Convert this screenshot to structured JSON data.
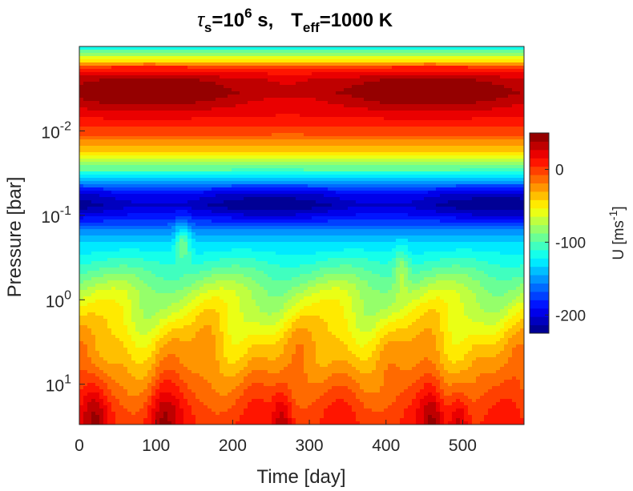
{
  "title": {
    "tau": "τ",
    "tau_sub": "s",
    "tau_eq": "=10",
    "tau_exp": "6",
    "tau_unit": " s,",
    "teff": "T",
    "teff_sub": "eff",
    "teff_val": "=1000 K"
  },
  "chart_data": {
    "type": "heatmap",
    "plot_style": "filled contour",
    "xlabel": "Time [day]",
    "ylabel": "Pressure [bar]",
    "xlim": [
      0,
      580
    ],
    "x_ticks": [
      0,
      100,
      200,
      300,
      400,
      500
    ],
    "x_tick_labels": [
      "0",
      "100",
      "200",
      "300",
      "400",
      "500"
    ],
    "y_scale": "log",
    "y_direction": "reversed",
    "ylim_bar": [
      0.001,
      30
    ],
    "y_ticks": [
      0.01,
      0.1,
      1,
      10
    ],
    "y_tick_labels": [
      {
        "base": "10",
        "exp": "-2"
      },
      {
        "base": "10",
        "exp": "-1"
      },
      {
        "base": "10",
        "exp": "0"
      },
      {
        "base": "10",
        "exp": "1"
      }
    ],
    "colorbar": {
      "label_base": "U [ms",
      "label_exp": "-1",
      "label_end": "]",
      "range": [
        -225,
        50
      ],
      "ticks": [
        0,
        -100,
        -200
      ],
      "tick_labels": [
        "0",
        "-100",
        "-200"
      ],
      "colormap": "jet",
      "levels": 24
    },
    "features": [
      {
        "name": "upper westerly jet",
        "pressure_bar": 0.003,
        "u_ms": 40
      },
      {
        "name": "easterly jet",
        "pressure_bar": 0.08,
        "u_ms": -210
      },
      {
        "name": "deep bursts",
        "pressure_bar": 25,
        "times_day": [
          20,
          110,
          265,
          460
        ],
        "u_ms": 30
      }
    ]
  }
}
